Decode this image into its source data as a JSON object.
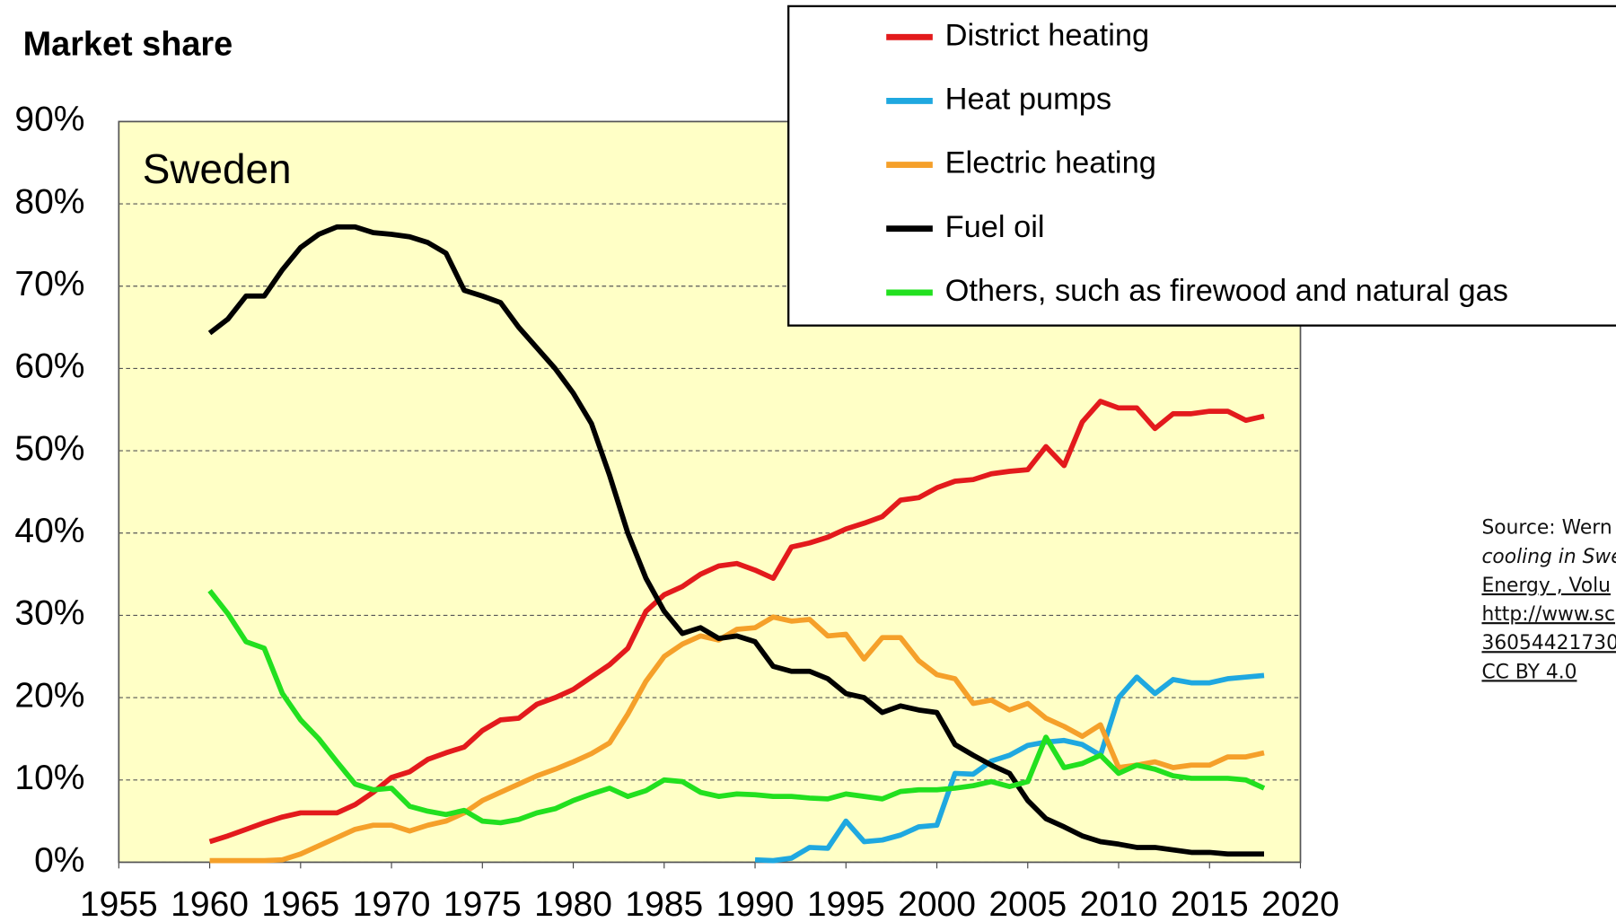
{
  "chart_data": {
    "type": "line",
    "title": "Market share",
    "subtitle": "Sweden",
    "source": [
      "Source: Wern",
      "cooling in Swe",
      "Energy , Volu",
      "http://www.sc",
      "36054421730",
      "CC BY 4.0"
    ],
    "x": [
      1960,
      1961,
      1962,
      1963,
      1964,
      1965,
      1966,
      1967,
      1968,
      1969,
      1970,
      1971,
      1972,
      1973,
      1974,
      1975,
      1976,
      1977,
      1978,
      1979,
      1980,
      1981,
      1982,
      1983,
      1984,
      1985,
      1986,
      1987,
      1988,
      1989,
      1990,
      1991,
      1992,
      1993,
      1994,
      1995,
      1996,
      1997,
      1998,
      1999,
      2000,
      2001,
      2002,
      2003,
      2004,
      2005,
      2006,
      2007,
      2008,
      2009,
      2010,
      2011,
      2012,
      2013,
      2014,
      2015,
      2016,
      2017,
      2018
    ],
    "series": [
      {
        "name": "District heating",
        "color": "#e31a1c",
        "values": [
          2.5,
          3.2,
          4,
          4.8,
          5.5,
          6,
          6,
          6,
          7,
          8.5,
          10.3,
          11,
          12.5,
          13.3,
          14,
          16,
          17.3,
          17.5,
          19.2,
          20,
          21,
          22.5,
          24,
          26,
          30.5,
          32.5,
          33.5,
          35,
          36,
          36.3,
          35.5,
          34.5,
          38.3,
          38.8,
          39.5,
          40.5,
          41.2,
          42,
          44,
          44.3,
          45.5,
          46.3,
          46.5,
          47.2,
          47.5,
          47.7,
          50.5,
          48.2,
          53.5,
          56,
          55.2,
          55.2,
          52.7,
          54.5,
          54.5,
          54.8,
          54.8,
          53.7,
          54.2
        ]
      },
      {
        "name": "Heat pumps",
        "color": "#1fa8e0",
        "values": [
          null,
          null,
          null,
          null,
          null,
          null,
          null,
          null,
          null,
          null,
          null,
          null,
          null,
          null,
          null,
          null,
          null,
          null,
          null,
          null,
          null,
          null,
          null,
          null,
          null,
          null,
          null,
          null,
          null,
          null,
          0.3,
          0.2,
          0.5,
          1.8,
          1.7,
          5,
          2.5,
          2.7,
          3.3,
          4.3,
          4.5,
          10.8,
          10.7,
          12.3,
          13,
          14.2,
          14.6,
          14.8,
          14.3,
          13,
          20,
          22.5,
          20.5,
          22.2,
          21.8,
          21.8,
          22.3,
          22.5,
          22.7
        ]
      },
      {
        "name": "Electric heating",
        "color": "#f5a02a",
        "values": [
          0.2,
          0.2,
          0.2,
          0.2,
          0.3,
          1,
          2,
          3,
          4,
          4.5,
          4.5,
          3.8,
          4.5,
          5,
          6,
          7.5,
          8.5,
          9.5,
          10.5,
          11.3,
          12.2,
          13.2,
          14.5,
          18,
          22,
          25,
          26.5,
          27.5,
          27,
          28.3,
          28.5,
          29.8,
          29.3,
          29.5,
          27.5,
          27.7,
          24.7,
          27.3,
          27.3,
          24.5,
          22.8,
          22.3,
          19.3,
          19.7,
          18.5,
          19.3,
          17.5,
          16.5,
          15.3,
          16.7,
          11.5,
          11.8,
          12.2,
          11.5,
          11.8,
          11.8,
          12.8,
          12.8,
          13.3
        ]
      },
      {
        "name": "Fuel oil",
        "color": "#000000",
        "values": [
          64.3,
          66,
          68.8,
          68.8,
          72,
          74.7,
          76.3,
          77.2,
          77.2,
          76.5,
          76.3,
          76,
          75.3,
          74,
          69.5,
          68.8,
          68,
          65,
          62.5,
          60,
          57,
          53.3,
          47,
          40,
          34.5,
          30.5,
          27.8,
          28.5,
          27.2,
          27.5,
          26.8,
          23.8,
          23.2,
          23.2,
          22.3,
          20.5,
          20,
          18.2,
          19,
          18.5,
          18.2,
          14.3,
          13,
          11.8,
          10.8,
          7.5,
          5.3,
          4.3,
          3.2,
          2.5,
          2.2,
          1.8,
          1.8,
          1.5,
          1.2,
          1.2,
          1,
          1,
          1
        ]
      },
      {
        "name": "Others, such as firewood and natural gas",
        "color": "#22e01f",
        "values": [
          33,
          30.2,
          26.8,
          26,
          20.5,
          17.3,
          15,
          12.2,
          9.5,
          8.8,
          9,
          6.8,
          6.2,
          5.8,
          6.3,
          5,
          4.8,
          5.2,
          6,
          6.5,
          7.5,
          8.3,
          9,
          8,
          8.7,
          10,
          9.8,
          8.5,
          8,
          8.3,
          8.2,
          8,
          8,
          7.8,
          7.7,
          8.3,
          8,
          7.7,
          8.6,
          8.8,
          8.8,
          9,
          9.3,
          9.8,
          9.2,
          9.8,
          15.2,
          11.5,
          12,
          13,
          10.8,
          11.8,
          11.3,
          10.5,
          10.2,
          10.2,
          10.2,
          10,
          9
        ]
      }
    ],
    "xlim": [
      1955,
      2020
    ],
    "xticks": [
      1955,
      1960,
      1965,
      1970,
      1975,
      1980,
      1985,
      1990,
      1995,
      2000,
      2005,
      2010,
      2015,
      2020
    ],
    "ylim": [
      0,
      90
    ],
    "yticks": [
      {
        "value": 0,
        "label": "0%"
      },
      {
        "value": 10,
        "label": "10%"
      },
      {
        "value": 20,
        "label": "20%"
      },
      {
        "value": 30,
        "label": "30%"
      },
      {
        "value": 40,
        "label": "40%"
      },
      {
        "value": 50,
        "label": "50%"
      },
      {
        "value": 60,
        "label": "60%"
      },
      {
        "value": 70,
        "label": "70%"
      },
      {
        "value": 80,
        "label": "80%"
      },
      {
        "value": 90,
        "label": "90%"
      }
    ],
    "grid": true,
    "legend": "top-right"
  }
}
